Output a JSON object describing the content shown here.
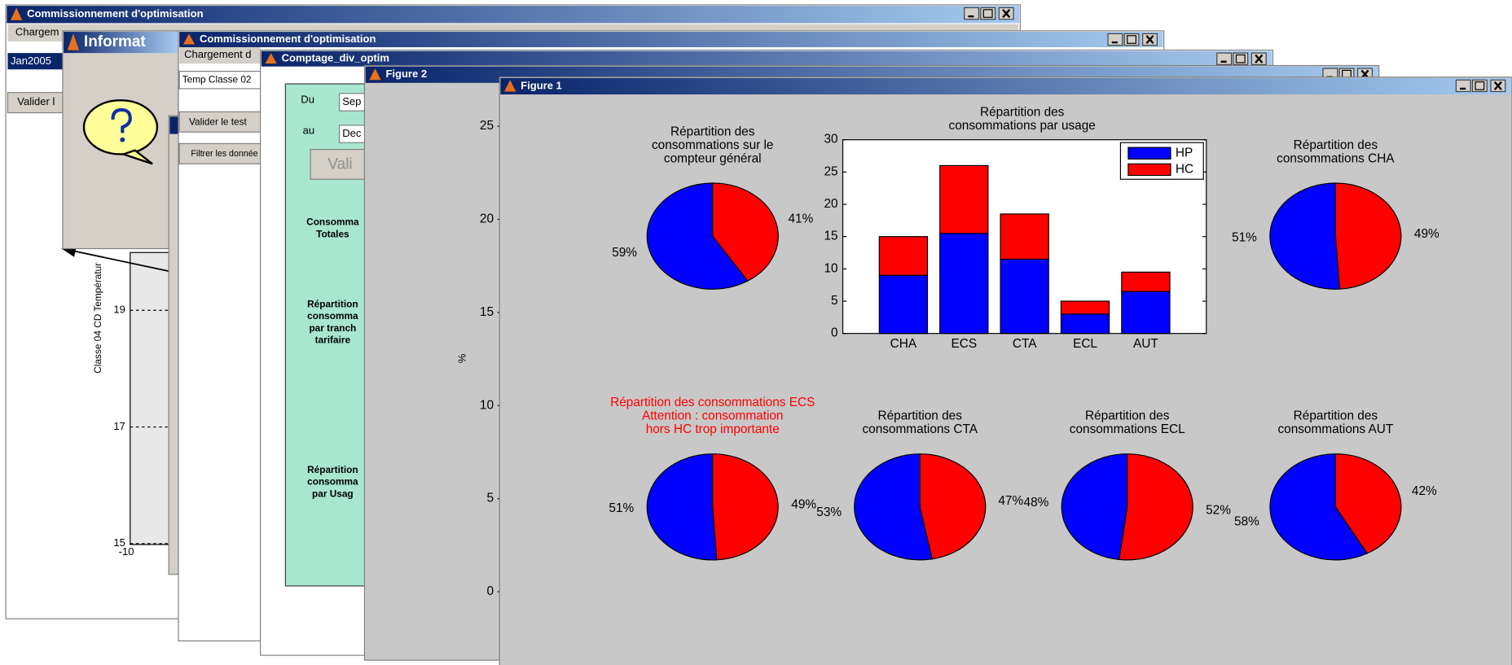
{
  "windows": [
    {
      "title": "Commissionnement d'optimisation",
      "menu": "Chargem",
      "field": "Jan2005",
      "button": "Valider l",
      "plot": {
        "yticks": [
          19,
          17,
          15
        ],
        "xtick": -10,
        "ylabel": "Classe 04   CD  Températur"
      }
    },
    {
      "title": "Informat"
    },
    {
      "title": "Commissionnement d'optimisation",
      "menu": "Chargement d",
      "field": "Temp Classe 02",
      "button": "Valider le test",
      "button2": "Filtrer les donnée"
    },
    {
      "title": "Comptage_div_optim",
      "from_label": "Du",
      "from_value": "Sep",
      "to_label": "au",
      "to_value": "Dec",
      "button": "Vali",
      "sections": [
        [
          "Consomma",
          "Totales"
        ],
        [
          "Répartition",
          "consomma",
          "par tranch",
          "tarifaire"
        ],
        [
          "Répartition",
          "consomma",
          "par Usag"
        ]
      ]
    },
    {
      "title": "Figure 2",
      "yticks": [
        0,
        5,
        10,
        15,
        20,
        25
      ],
      "ylabel": "%"
    },
    {
      "title": "Figure 1"
    }
  ],
  "chart_data": [
    {
      "type": "pie",
      "title": [
        "Répartition des",
        "consommations sur le",
        "compteur général"
      ],
      "values": [
        59,
        41
      ],
      "value_labels": [
        "59%",
        "41%"
      ],
      "colors": [
        "#0000ff",
        "#ff0000"
      ]
    },
    {
      "type": "bar",
      "stacked": true,
      "title": [
        "Répartition des",
        "consommations par usage"
      ],
      "categories": [
        "CHA",
        "ECS",
        "CTA",
        "ECL",
        "AUT"
      ],
      "series": [
        {
          "name": "HP",
          "color": "#0000ff",
          "values": [
            9,
            15.5,
            11.5,
            3,
            6.5
          ]
        },
        {
          "name": "HC",
          "color": "#ff0000",
          "values": [
            6,
            10.5,
            7,
            2,
            3
          ]
        }
      ],
      "ylim": [
        0,
        30
      ],
      "yticks": [
        0,
        5,
        10,
        15,
        20,
        25,
        30
      ],
      "legend": "upper right"
    },
    {
      "type": "pie",
      "title": [
        "Répartition des",
        "consommations CHA"
      ],
      "values": [
        51,
        49
      ],
      "value_labels": [
        "51%",
        "49%"
      ],
      "colors": [
        "#0000ff",
        "#ff0000"
      ]
    },
    {
      "type": "pie",
      "title": [
        "Répartition des consommations ECS",
        "Attention  : consommation",
        "hors HC trop importante"
      ],
      "title_color": "#ff0000",
      "values": [
        51,
        49
      ],
      "value_labels": [
        "51%",
        "49%"
      ],
      "colors": [
        "#0000ff",
        "#ff0000"
      ]
    },
    {
      "type": "pie",
      "title": [
        "Répartition des",
        "consommations CTA"
      ],
      "values": [
        53,
        47
      ],
      "value_labels": [
        "53%",
        "47%"
      ],
      "colors": [
        "#0000ff",
        "#ff0000"
      ]
    },
    {
      "type": "pie",
      "title": [
        "Répartition des",
        "consommations ECL"
      ],
      "values": [
        48,
        52
      ],
      "value_labels": [
        "48%",
        "52%"
      ],
      "colors": [
        "#0000ff",
        "#ff0000"
      ]
    },
    {
      "type": "pie",
      "title": [
        "Répartition des",
        "consommations AUT"
      ],
      "values": [
        58,
        42
      ],
      "value_labels": [
        "58%",
        "42%"
      ],
      "colors": [
        "#0000ff",
        "#ff0000"
      ]
    }
  ]
}
